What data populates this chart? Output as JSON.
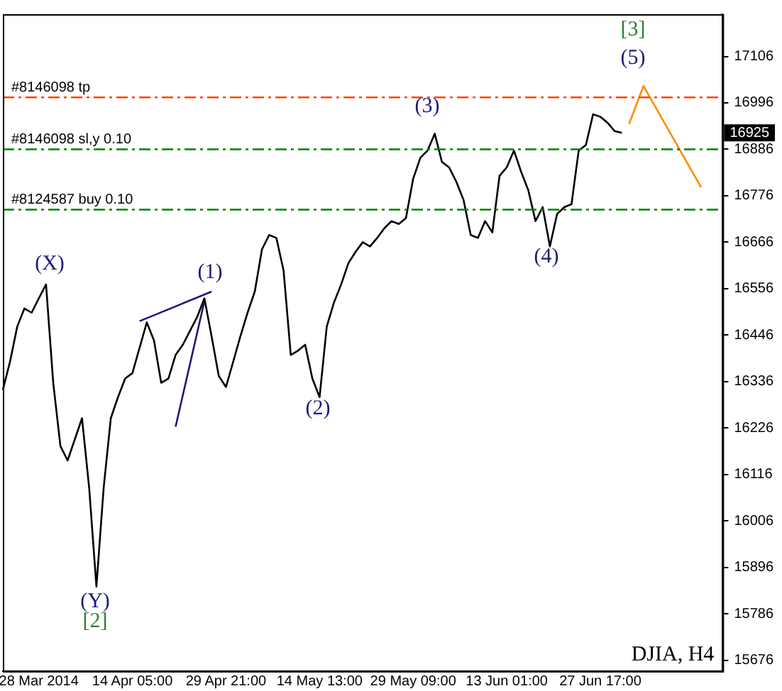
{
  "chart_data": {
    "type": "line",
    "legend": false,
    "grid": false,
    "marker": "none",
    "line_style": "solid",
    "categories": [
      null,
      null,
      null,
      null,
      null,
      "28 Mar 2014",
      null,
      null,
      null,
      null,
      null,
      null,
      null,
      null,
      null,
      null,
      null,
      null,
      "14 Apr 05:00",
      null,
      null,
      null,
      null,
      null,
      null,
      null,
      null,
      null,
      null,
      null,
      null,
      "29 Apr 21:00",
      null,
      null,
      null,
      null,
      null,
      null,
      null,
      null,
      null,
      null,
      null,
      null,
      "14 May 13:00",
      null,
      null,
      null,
      null,
      null,
      null,
      null,
      null,
      null,
      null,
      null,
      null,
      "29 May 09:00",
      null,
      null,
      null,
      null,
      null,
      null,
      null,
      null,
      null,
      null,
      null,
      null,
      "13 Jun 01:00",
      null,
      null,
      null,
      null,
      null,
      null,
      null,
      null,
      null,
      null,
      null,
      null,
      "27 Jun 17:00",
      null,
      null,
      null,
      null,
      null,
      null,
      null,
      null,
      null,
      null,
      null,
      null,
      null,
      null,
      null,
      null,
      null
    ],
    "ylim": [
      15650,
      17206
    ],
    "yticks": [
      15676,
      15786,
      15896,
      16006,
      16116,
      16226,
      16336,
      16446,
      16556,
      16666,
      16776,
      16886,
      16996,
      17106
    ],
    "series": [
      {
        "color": "#000000",
        "values": [
          16316,
          16383,
          16466,
          16509,
          16499,
          16533,
          16566,
          16333,
          16183,
          16149,
          16199,
          16249,
          16083,
          15850,
          16083,
          16249,
          16299,
          16343,
          16356,
          16416,
          16476,
          16433,
          16333,
          16343,
          16399,
          16423,
          16456,
          16489,
          16533,
          16443,
          16349,
          16323,
          16383,
          16443,
          16499,
          16549,
          16649,
          16683,
          16676,
          16599,
          16399,
          16409,
          16423,
          16343,
          16299,
          16466,
          16523,
          16566,
          16616,
          16643,
          16666,
          16656,
          16676,
          16699,
          16716,
          16709,
          16723,
          16816,
          16866,
          16883,
          16923,
          16856,
          16843,
          16809,
          16766,
          16683,
          16676,
          16716,
          16689,
          16823,
          16843,
          16883,
          16833,
          16789,
          16716,
          16749,
          16656,
          16733,
          16749,
          16756,
          16883,
          16896,
          16969,
          16963,
          16949,
          16929,
          16925,
          null,
          null,
          null,
          null,
          null,
          null,
          null,
          null,
          null,
          null,
          null,
          null,
          null,
          null
        ]
      },
      {
        "color": "#ff8c00",
        "values": [
          null,
          null,
          null,
          null,
          null,
          null,
          null,
          null,
          null,
          null,
          null,
          null,
          null,
          null,
          null,
          null,
          null,
          null,
          null,
          null,
          null,
          null,
          null,
          null,
          null,
          null,
          null,
          null,
          null,
          null,
          null,
          null,
          null,
          null,
          null,
          null,
          null,
          null,
          null,
          null,
          null,
          null,
          null,
          null,
          null,
          null,
          null,
          null,
          null,
          null,
          null,
          null,
          null,
          null,
          null,
          null,
          null,
          null,
          null,
          null,
          null,
          null,
          null,
          null,
          null,
          null,
          null,
          null,
          null,
          null,
          null,
          null,
          null,
          null,
          null,
          null,
          null,
          null,
          null,
          null,
          null,
          null,
          null,
          null,
          null,
          null,
          null,
          16946,
          null,
          17036,
          null,
          null,
          null,
          null,
          null,
          null,
          null,
          16796,
          null,
          null,
          null
        ]
      },
      {
        "color": "#1a1a7a",
        "values": [
          null,
          null,
          null,
          null,
          null,
          null,
          null,
          null,
          null,
          null,
          null,
          null,
          null,
          null,
          null,
          null,
          null,
          null,
          null,
          16479,
          null,
          null,
          null,
          null,
          null,
          null,
          null,
          null,
          null,
          16549,
          null,
          null,
          null,
          null,
          null,
          null,
          null,
          null,
          null,
          null,
          null,
          null,
          null,
          null,
          null,
          null,
          null,
          null,
          null,
          null,
          null,
          null,
          null,
          null,
          null,
          null,
          null,
          null,
          null,
          null,
          null,
          null,
          null,
          null,
          null,
          null,
          null,
          null,
          null,
          null,
          null,
          null,
          null,
          null,
          null,
          null,
          null,
          null,
          null,
          null,
          null,
          null,
          null,
          null,
          null,
          null,
          null,
          null,
          null,
          null,
          null,
          null,
          null,
          null,
          null,
          null,
          null,
          null,
          null,
          null,
          null
        ]
      },
      {
        "color": "#1a1a7a",
        "values": [
          null,
          null,
          null,
          null,
          null,
          null,
          null,
          null,
          null,
          null,
          null,
          null,
          null,
          null,
          null,
          null,
          null,
          null,
          null,
          null,
          null,
          null,
          null,
          null,
          16229,
          null,
          null,
          null,
          16526,
          null,
          null,
          null,
          null,
          null,
          null,
          null,
          null,
          null,
          null,
          null,
          null,
          null,
          null,
          null,
          null,
          null,
          null,
          null,
          null,
          null,
          null,
          null,
          null,
          null,
          null,
          null,
          null,
          null,
          null,
          null,
          null,
          null,
          null,
          null,
          null,
          null,
          null,
          null,
          null,
          null,
          null,
          null,
          null,
          null,
          null,
          null,
          null,
          null,
          null,
          null,
          null,
          null,
          null,
          null,
          null,
          null,
          null,
          null,
          null,
          null,
          null,
          null,
          null,
          null,
          null,
          null,
          null,
          null,
          null,
          null,
          null
        ]
      }
    ],
    "ref_lines": [
      {
        "axis": "y",
        "value": 17009,
        "label": "#8146098 tp",
        "color": "#ff4500",
        "line_style": "dashdot"
      },
      {
        "axis": "y",
        "value": 16886,
        "label": "#8146098 sl,y 0.10",
        "color": "#008000",
        "line_style": "dashdot"
      },
      {
        "axis": "y",
        "value": 16743,
        "label": "#8124587 buy 0.10",
        "color": "#008000",
        "line_style": "dashdot"
      }
    ],
    "annotations": [
      "(X)",
      "(Y)",
      "[2]",
      "(1)",
      "(2)",
      "(3)",
      "(4)",
      "(5)",
      "[3]",
      "DJIA, H4",
      "16925"
    ]
  }
}
